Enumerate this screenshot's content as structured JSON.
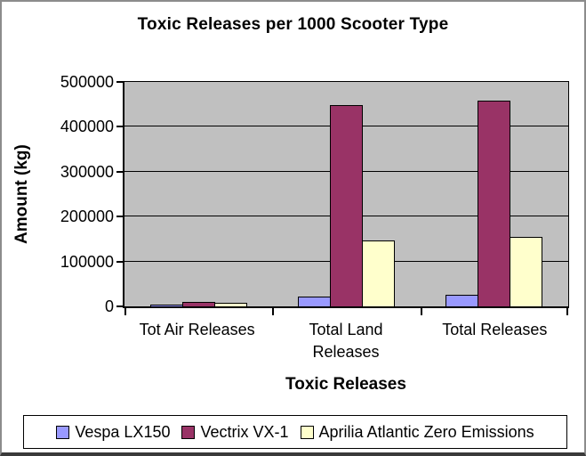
{
  "chart_data": {
    "type": "bar",
    "title": "Toxic Releases per 1000 Scooter Type",
    "xlabel": "Toxic Releases",
    "ylabel": "Amount (kg)",
    "categories": [
      "Tot Air Releases",
      "Total Land Releases",
      "Total Releases"
    ],
    "series": [
      {
        "name": "Vespa LX150",
        "color": "#9999FF",
        "values": [
          3000,
          22000,
          25000
        ]
      },
      {
        "name": "Vectrix VX-1",
        "color": "#993366",
        "values": [
          10000,
          448000,
          458000
        ]
      },
      {
        "name": "Aprilia Atlantic Zero Emissions",
        "color": "#FFFFCC",
        "values": [
          7000,
          147000,
          154000
        ]
      }
    ],
    "ylim": [
      0,
      500000
    ],
    "ytick_interval": 100000,
    "yticks": [
      "0",
      "100000",
      "200000",
      "300000",
      "400000",
      "500000"
    ],
    "grid": true,
    "legend_position": "bottom",
    "colors": {
      "plot_bg": "#C0C0C0",
      "gridline": "#000000",
      "bar_border": "#000000",
      "text": "#000000"
    }
  }
}
